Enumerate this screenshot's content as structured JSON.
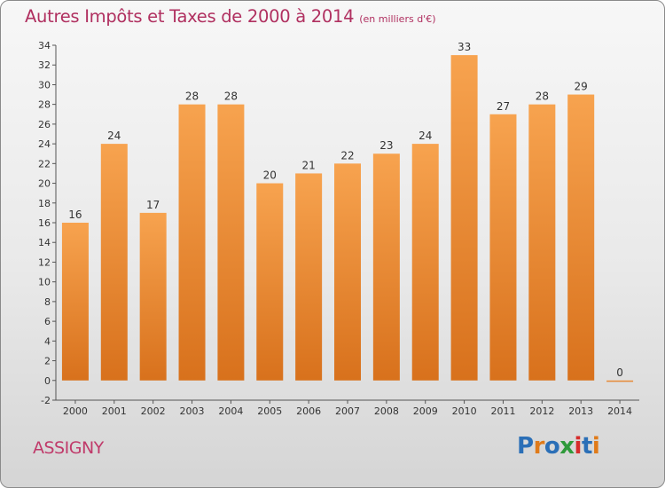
{
  "header": {
    "title": "Autres Impôts et Taxes de 2000 à 2014",
    "unit": "(en milliers d'€)"
  },
  "footer": {
    "commune": "ASSIGNY",
    "logo_text": "Proxiti"
  },
  "colors": {
    "title": "#b03060",
    "commune": "#c03a6a",
    "bar_light": "#f7a34f",
    "bar_dark": "#d8711c",
    "logo": [
      "#2b6fb7",
      "#e07b1a",
      "#2b6fb7",
      "#2f9a3a",
      "#d62c2c",
      "#2b6fb7",
      "#e07b1a"
    ]
  },
  "chart_data": {
    "type": "bar",
    "title": "Autres Impôts et Taxes de 2000 à 2014",
    "categories": [
      "2000",
      "2001",
      "2002",
      "2003",
      "2004",
      "2005",
      "2006",
      "2007",
      "2008",
      "2009",
      "2010",
      "2011",
      "2012",
      "2013",
      "2014"
    ],
    "values": [
      16,
      24,
      17,
      28,
      28,
      20,
      21,
      22,
      23,
      24,
      33,
      27,
      28,
      29,
      0
    ],
    "ylim": [
      -2,
      34
    ],
    "yticks": [
      -2,
      0,
      2,
      4,
      6,
      8,
      10,
      12,
      14,
      16,
      18,
      20,
      22,
      24,
      26,
      28,
      30,
      32,
      34
    ],
    "grid": false,
    "data_labels": true
  }
}
